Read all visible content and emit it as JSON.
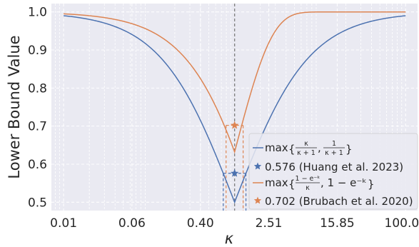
{
  "chart_data": {
    "type": "line",
    "xlabel": "κ",
    "ylabel": "Lower Bound Value",
    "xscale": "log",
    "xlim": [
      0.0072,
      138
    ],
    "ylim": [
      0.478,
      1.022
    ],
    "xticks": [
      0.01,
      0.063,
      0.398,
      2.512,
      15.849,
      100
    ],
    "xtick_labels": [
      "0.01",
      "0.06",
      "0.40",
      "2.51",
      "15.85",
      "100.00"
    ],
    "yticks": [
      0.5,
      0.6,
      0.7,
      0.8,
      0.9,
      1.0
    ],
    "ytick_labels": [
      "0.5",
      "0.6",
      "0.7",
      "0.8",
      "0.9",
      "1.0"
    ],
    "grid": true,
    "legend_position": "lower-right",
    "colors": {
      "blue": "#4c72b0",
      "orange": "#dd8452",
      "vline": "#808080",
      "bg": "#eaeaf2"
    },
    "series": [
      {
        "key": "huang_curve",
        "formula": "max(k/(k+1), 1/(k+1))",
        "x_range": [
          0.01,
          100
        ],
        "color": "#4c72b0"
      },
      {
        "key": "brubach_curve",
        "formula": "max((1-e^-k)/k, 1-e^-k)",
        "x_range": [
          0.01,
          100
        ],
        "color": "#dd8452"
      }
    ],
    "optima": [
      {
        "key": "huang_star",
        "x": 1.0,
        "y": 0.576,
        "x_range": [
          0.737,
          1.357
        ],
        "color": "#4c72b0"
      },
      {
        "key": "brubach_star",
        "x": 1.0,
        "y": 0.702,
        "x_range": [
          0.795,
          1.258
        ],
        "color": "#dd8452"
      }
    ],
    "vline_x": 1.0,
    "legend": [
      {
        "kind": "line",
        "color": "#4c72b0",
        "prefix": "max",
        "frac1_num": "κ",
        "frac1_den": "κ + 1",
        "frac2_num": "1",
        "frac2_den": "κ + 1"
      },
      {
        "kind": "star",
        "color": "#4c72b0",
        "text": "0.576 (Huang et al. 2023)"
      },
      {
        "kind": "line",
        "color": "#dd8452",
        "prefix": "max",
        "frac1_num": "1 − e⁻ᵏ",
        "frac1_den": "κ",
        "rest": ", 1 − e⁻ᵏ"
      },
      {
        "kind": "star",
        "color": "#dd8452",
        "text": "0.702 (Brubach et al. 2020)"
      }
    ]
  }
}
